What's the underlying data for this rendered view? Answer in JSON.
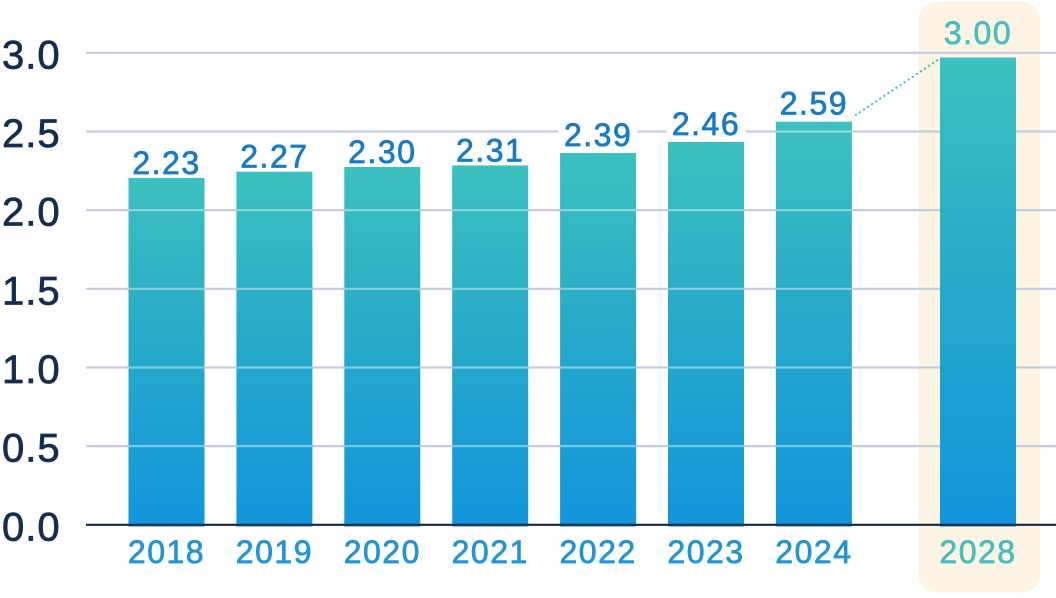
{
  "chart_data": {
    "type": "bar",
    "title": "",
    "xlabel": "",
    "ylabel": "",
    "categories": [
      "2018",
      "2019",
      "2020",
      "2021",
      "2022",
      "2023",
      "2024",
      "2028"
    ],
    "values": [
      2.23,
      2.27,
      2.3,
      2.31,
      2.39,
      2.46,
      2.59,
      3.0
    ],
    "value_labels": [
      "2.23",
      "2.27",
      "2.30",
      "2.31",
      "2.39",
      "2.46",
      "2.59",
      "3.00"
    ],
    "labels_with_white_box": [
      "2.39",
      "2.46",
      "2.59"
    ],
    "highlight_category": "2028",
    "connector": {
      "from_category": "2024",
      "to_category": "2028",
      "style": "dotted"
    },
    "ylim": [
      0,
      3
    ],
    "yticks": [
      0,
      0.5,
      1,
      1.5,
      2,
      2.5,
      3
    ],
    "ytick_labels": [
      "0.0",
      "0.5",
      "1.0",
      "1.5",
      "2.0",
      "2.5",
      "3.0"
    ],
    "grid": true,
    "legend": false,
    "colors": {
      "background": "#ffffff",
      "bar_gradient_top": "#3cc1c0",
      "bar_gradient_mid": "#2aadc7",
      "bar_gradient_bottom": "#1295dc",
      "gridline": "#c5cde1",
      "axis_line": "#0e2949",
      "ytick_text": "#142e52",
      "xtick_text": "#2296d5",
      "value_text": "#187bc7",
      "highlight_text": "#49bec0",
      "highlight_panel": "#fdf4e3",
      "label_box": "#ffffff",
      "connector": "#3fbdc7"
    }
  }
}
